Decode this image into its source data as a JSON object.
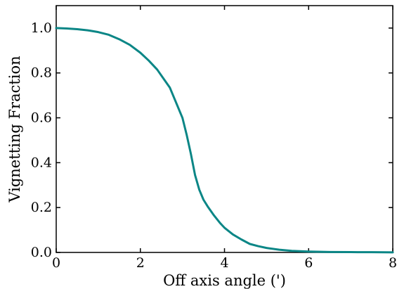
{
  "chart_data": {
    "type": "line",
    "title": "",
    "xlabel": "Off axis angle (')",
    "ylabel": "Vignetting Fraction",
    "xlim": [
      0,
      8
    ],
    "ylim": [
      0,
      1.1
    ],
    "grid": false,
    "x_ticks": [
      0,
      2,
      4,
      6,
      8
    ],
    "x_tick_labels": [
      "0",
      "2",
      "4",
      "6",
      "8"
    ],
    "y_ticks": [
      0.0,
      0.2,
      0.4,
      0.6,
      0.8,
      1.0
    ],
    "y_tick_labels": [
      "0.0",
      "0.2",
      "0.4",
      "0.6",
      "0.8",
      "1.0"
    ],
    "series": [
      {
        "color": "#0b8686",
        "x": [
          0,
          0.25,
          0.5,
          0.75,
          1.0,
          1.25,
          1.5,
          1.75,
          2.0,
          2.2,
          2.4,
          2.55,
          2.7,
          2.8,
          2.9,
          3.0,
          3.1,
          3.2,
          3.3,
          3.4,
          3.5,
          3.6,
          3.75,
          3.9,
          4.0,
          4.2,
          4.4,
          4.6,
          4.8,
          5.0,
          5.3,
          5.6,
          6.0,
          6.5,
          7.0,
          7.5,
          8.0
        ],
        "y": [
          1.0,
          0.998,
          0.995,
          0.99,
          0.982,
          0.97,
          0.95,
          0.925,
          0.89,
          0.855,
          0.815,
          0.775,
          0.735,
          0.69,
          0.645,
          0.6,
          0.525,
          0.44,
          0.345,
          0.28,
          0.235,
          0.205,
          0.165,
          0.13,
          0.11,
          0.08,
          0.058,
          0.038,
          0.028,
          0.02,
          0.012,
          0.007,
          0.004,
          0.002,
          0.0015,
          0.001,
          0.0005
        ]
      }
    ]
  }
}
